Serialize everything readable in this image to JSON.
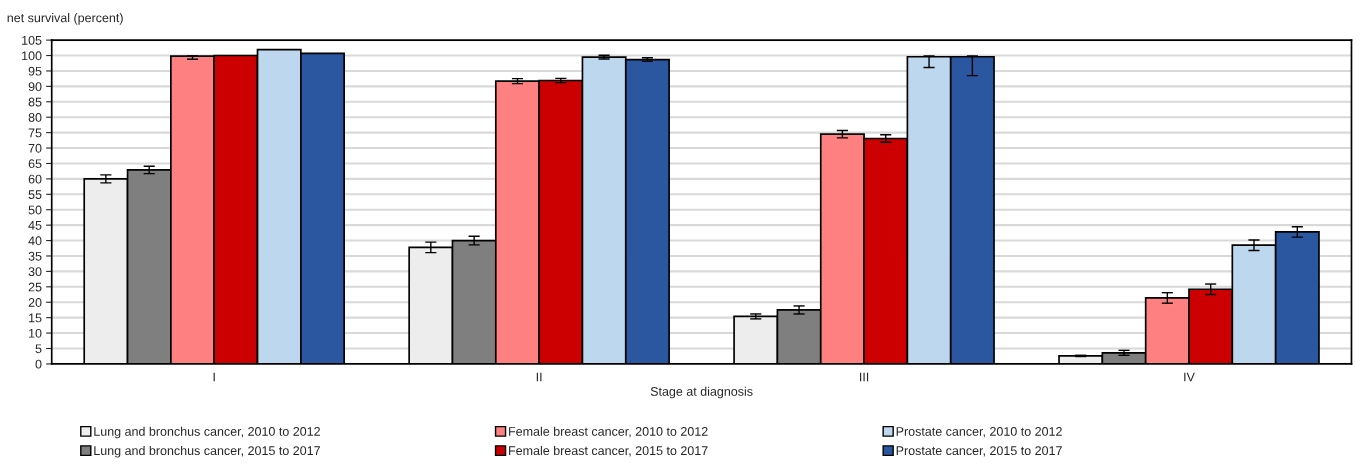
{
  "chart_data": {
    "type": "bar",
    "ylabel": "net survival (percent)",
    "xlabel": "Stage at diagnosis",
    "categories": [
      "I",
      "II",
      "III",
      "IV"
    ],
    "series": [
      {
        "name": "Lung and bronchus cancer, 2010 to 2012",
        "color": "#ededed",
        "values": [
          60.0,
          37.8,
          15.4,
          2.6
        ],
        "errors": [
          1.3,
          1.7,
          0.8,
          0.2
        ]
      },
      {
        "name": "Lung and bronchus cancer, 2015 to 2017",
        "color": "#7f7f7f",
        "values": [
          62.9,
          40.0,
          17.5,
          3.6
        ],
        "errors": [
          1.2,
          1.4,
          1.3,
          0.8
        ]
      },
      {
        "name": "Female breast cancer, 2010 to 2012",
        "color": "#ff8080",
        "values": [
          99.8,
          91.7,
          74.5,
          21.4
        ],
        "errors": [
          [
            98.8,
            99.9
          ],
          0.8,
          1.2,
          1.7
        ]
      },
      {
        "name": "Female breast cancer, 2015 to 2017",
        "color": "#cc0000",
        "values": [
          100.0,
          91.9,
          73.1,
          24.2
        ],
        "errors": [
          null,
          0.7,
          1.2,
          1.7
        ]
      },
      {
        "name": "Prostate cancer, 2010 to 2012",
        "color": "#bdd7ee",
        "values": [
          101.9,
          99.5,
          99.6,
          38.5
        ],
        "errors": [
          null,
          0.6,
          [
            96.1,
            99.9
          ],
          1.7
        ]
      },
      {
        "name": "Prostate cancer, 2015 to 2017",
        "color": "#2a579f",
        "values": [
          100.7,
          98.7,
          99.6,
          42.8
        ],
        "errors": [
          null,
          0.6,
          [
            93.5,
            99.9
          ],
          1.7
        ]
      }
    ],
    "ylim": [
      0,
      105
    ],
    "yticks": [
      0,
      5,
      10,
      15,
      20,
      25,
      30,
      35,
      40,
      45,
      50,
      55,
      60,
      65,
      70,
      75,
      80,
      85,
      90,
      95,
      100,
      105
    ],
    "grid": "y",
    "legend": "bottom"
  }
}
